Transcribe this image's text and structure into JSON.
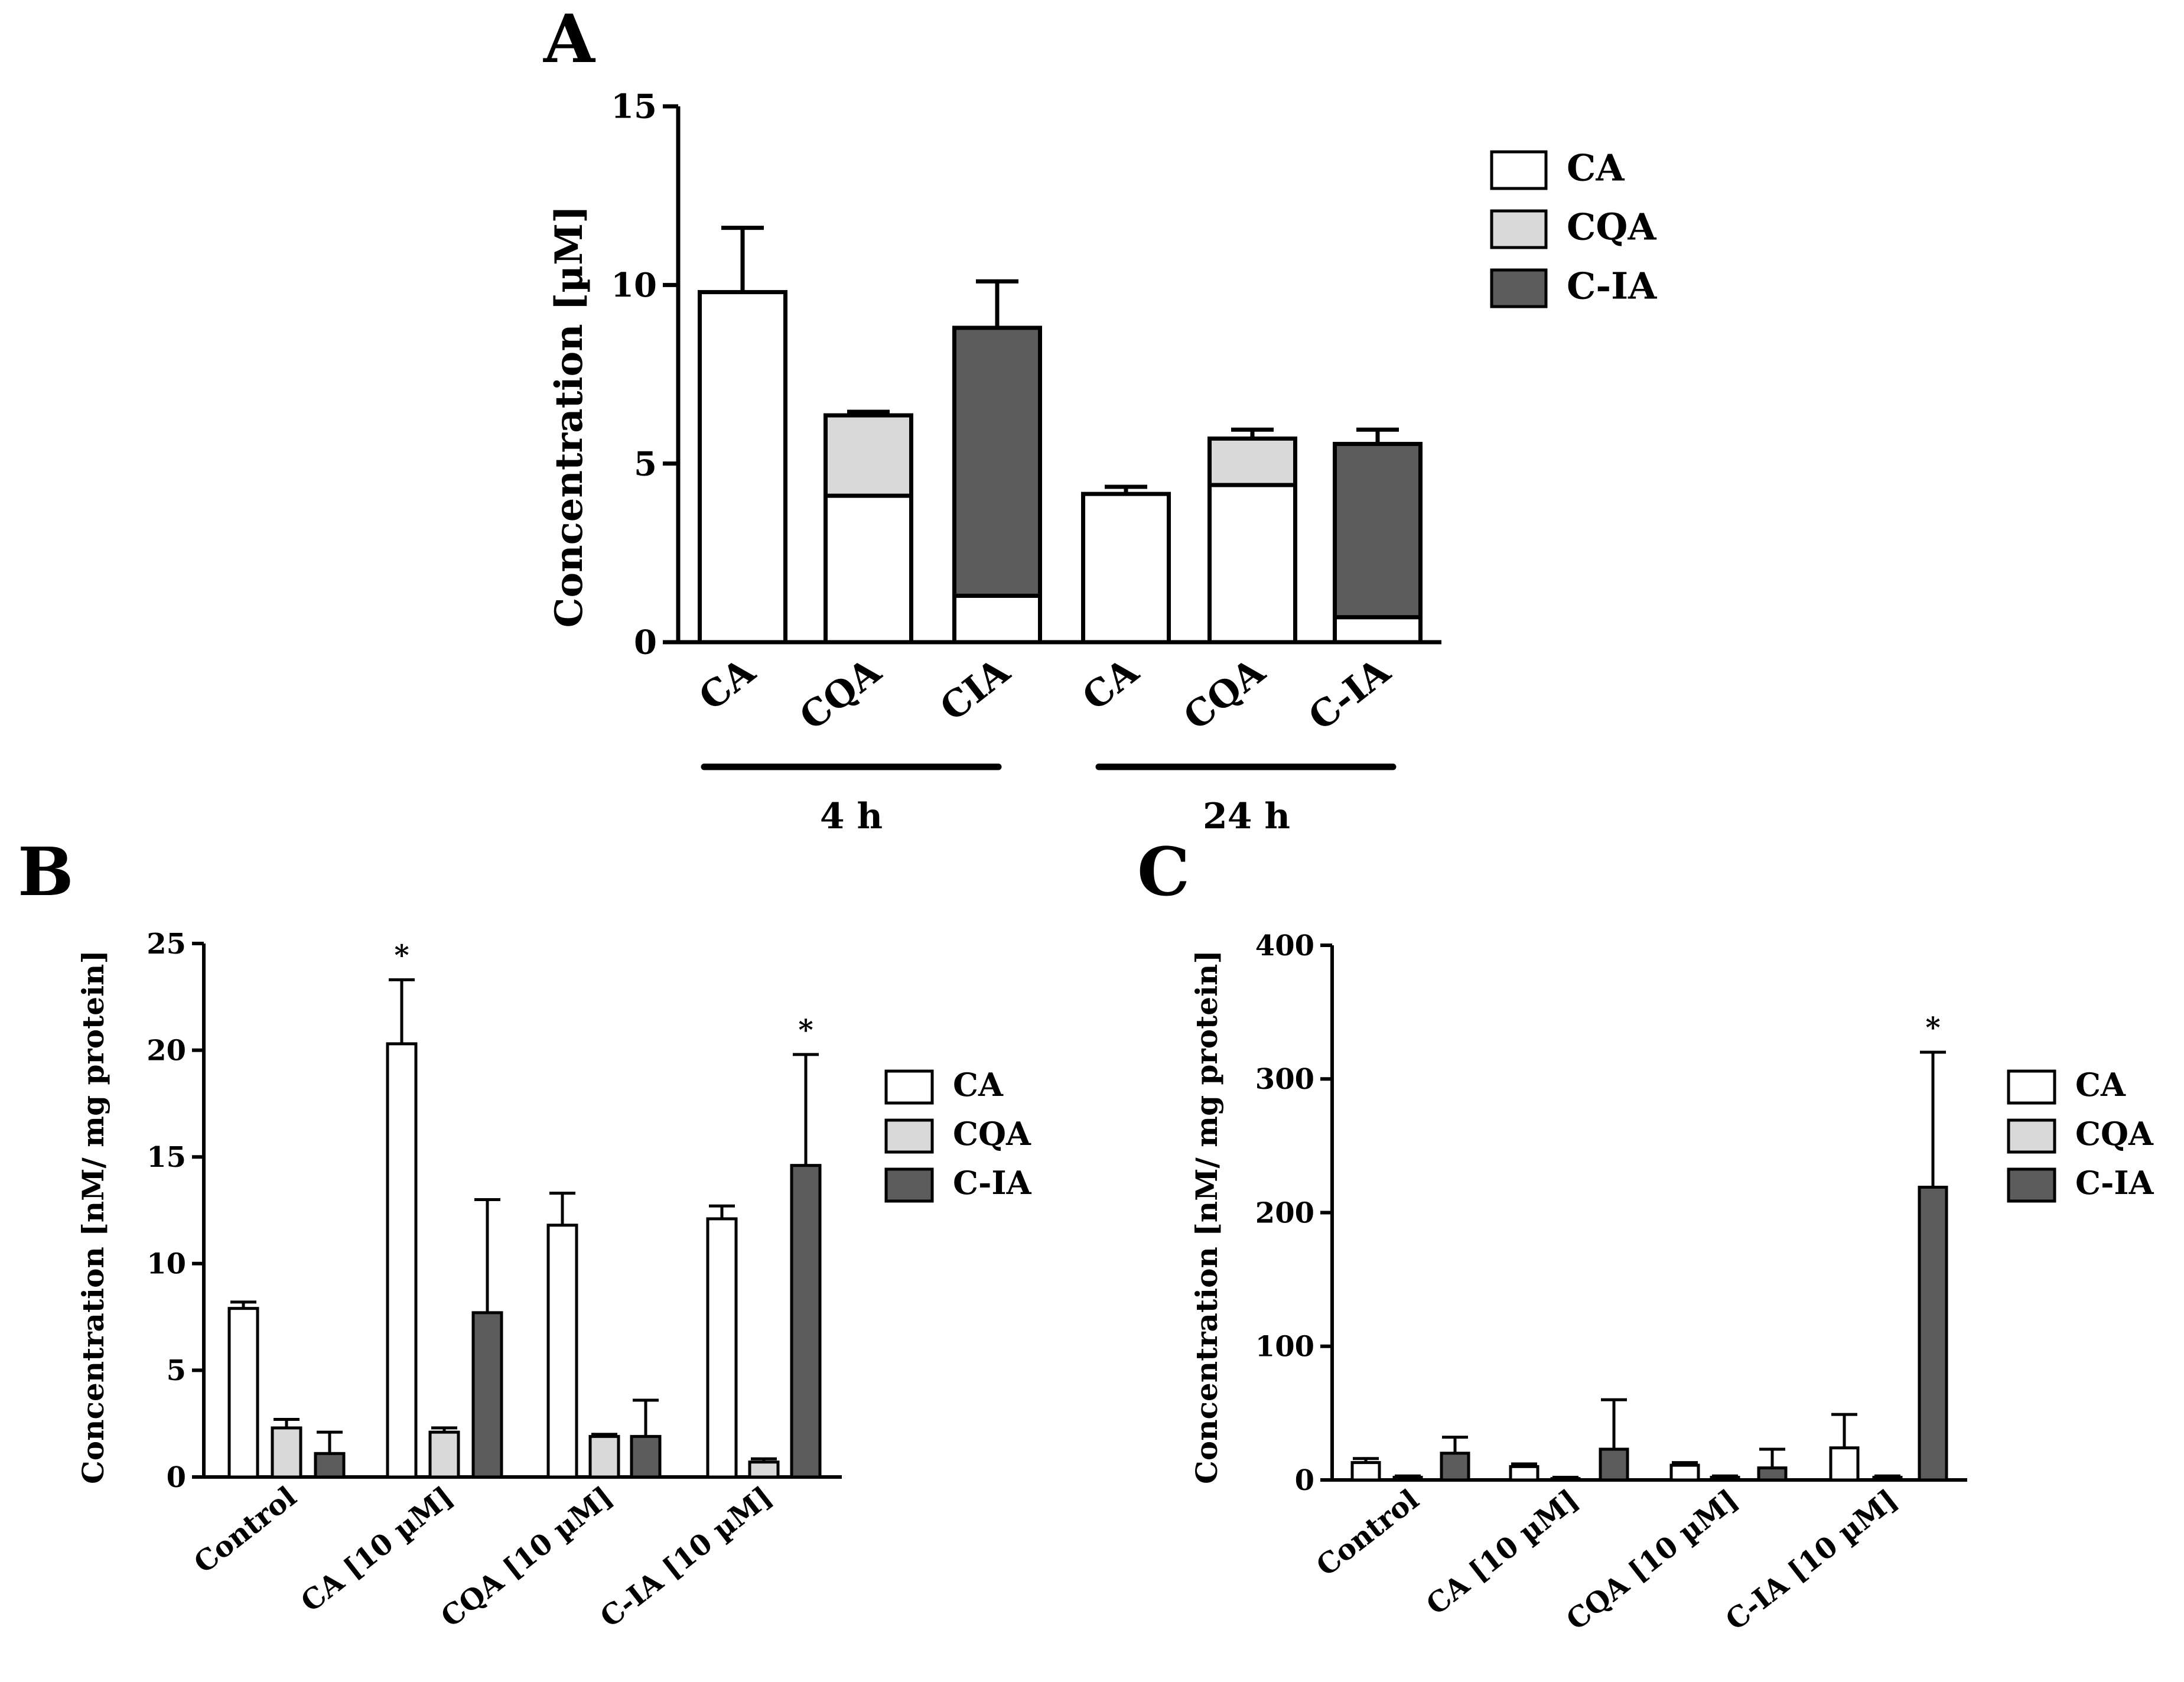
{
  "colors": {
    "CA": "#ffffff",
    "CQA": "#d9d9d9",
    "C-IA": "#5c5c5c",
    "stroke": "#000000"
  },
  "chart_data": [
    {
      "panel": "A",
      "type": "bar",
      "stacked": true,
      "ylabel": "Concentration [µM]",
      "ylim": [
        0,
        15
      ],
      "yticks": [
        0,
        5,
        10,
        15
      ],
      "categories": [
        "CA",
        "CQA",
        "CIA",
        "CA",
        "CQA",
        "C-IA"
      ],
      "groups": [
        {
          "label": "4 h",
          "categories": [
            0,
            1,
            2
          ]
        },
        {
          "label": "24 h",
          "categories": [
            3,
            4,
            5
          ]
        }
      ],
      "series": [
        {
          "name": "CA",
          "values": [
            9.8,
            4.1,
            1.3,
            4.15,
            4.4,
            0.7
          ],
          "errors": [
            1.8,
            0.2,
            0.05,
            0.2,
            0.1,
            0.08
          ]
        },
        {
          "name": "CQA",
          "values": [
            0,
            2.25,
            0,
            0,
            1.3,
            0
          ],
          "errors": [
            0,
            0.1,
            0,
            0,
            0.25,
            0
          ]
        },
        {
          "name": "C-IA",
          "values": [
            0,
            0,
            7.5,
            0,
            0,
            4.85
          ],
          "errors": [
            0,
            0,
            1.3,
            0,
            0,
            0.4
          ]
        }
      ],
      "legend": [
        "CA",
        "CQA",
        "C-IA"
      ]
    },
    {
      "panel": "B",
      "type": "bar",
      "ylabel": "Concentration [nM/ mg protein]",
      "ylim": [
        0,
        25
      ],
      "yticks": [
        0,
        5,
        10,
        15,
        20,
        25
      ],
      "categories": [
        "Control",
        "CA [10 µM]",
        "CQA [10 µM]",
        "C-IA [10 µM]"
      ],
      "series": [
        {
          "name": "CA",
          "values": [
            7.9,
            20.3,
            11.8,
            12.1
          ],
          "errors": [
            0.3,
            3.0,
            1.5,
            0.6
          ]
        },
        {
          "name": "CQA",
          "values": [
            2.3,
            2.1,
            1.9,
            0.7
          ],
          "errors": [
            0.4,
            0.2,
            0.1,
            0.15
          ]
        },
        {
          "name": "C-IA",
          "values": [
            1.1,
            7.7,
            1.9,
            14.6
          ],
          "errors": [
            1.0,
            5.3,
            1.7,
            5.2
          ]
        }
      ],
      "significance": [
        {
          "category": 1,
          "series": 0,
          "mark": "*"
        },
        {
          "category": 3,
          "series": 2,
          "mark": "*"
        }
      ],
      "legend": [
        "CA",
        "CQA",
        "C-IA"
      ]
    },
    {
      "panel": "C",
      "type": "bar",
      "ylabel": "Concentration [nM/ mg protein]",
      "ylim": [
        0,
        400
      ],
      "yticks": [
        0,
        100,
        200,
        300,
        400
      ],
      "categories": [
        "Control",
        "CA [10 µM]",
        "CQA [10 µM]",
        "C-IA [10 µM]"
      ],
      "series": [
        {
          "name": "CA",
          "values": [
            13,
            10,
            11,
            24
          ],
          "errors": [
            3,
            2,
            2,
            25
          ]
        },
        {
          "name": "CQA",
          "values": [
            2,
            1,
            2,
            2
          ],
          "errors": [
            1,
            1,
            1,
            1
          ]
        },
        {
          "name": "C-IA",
          "values": [
            20,
            23,
            9,
            219
          ],
          "errors": [
            12,
            37,
            14,
            101
          ]
        }
      ],
      "significance": [
        {
          "category": 3,
          "series": 2,
          "mark": "*"
        }
      ],
      "legend": [
        "CA",
        "CQA",
        "C-IA"
      ]
    }
  ]
}
